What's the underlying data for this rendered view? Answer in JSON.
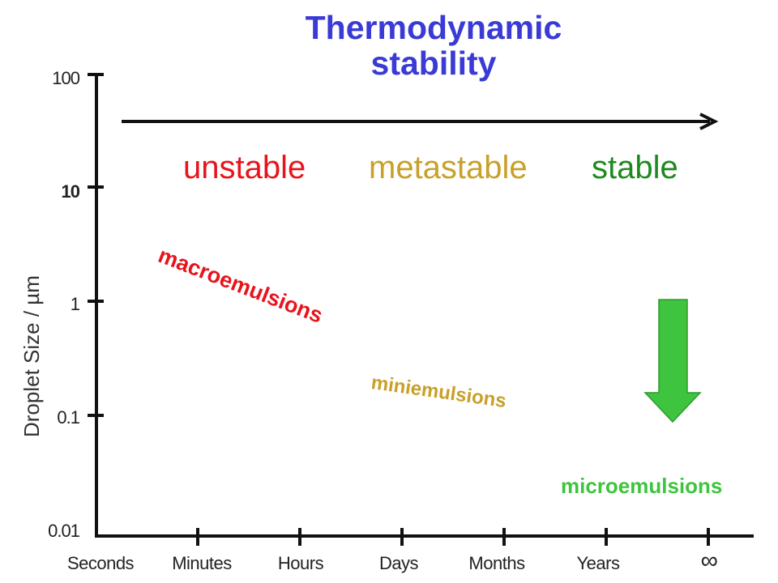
{
  "title": {
    "line1": "Thermodynamic",
    "line2": "stability"
  },
  "stability": {
    "unstable": "unstable",
    "metastable": "metastable",
    "stable": "stable"
  },
  "emulsions": {
    "macro": "macroemulsions",
    "mini": "miniemulsions",
    "micro": "microemulsions"
  },
  "y_axis": {
    "label": "Droplet Size / µm",
    "ticks": [
      "100",
      "10",
      "1",
      "0.1",
      "0.01"
    ]
  },
  "x_axis": {
    "ticks": [
      "Seconds",
      "Minutes",
      "Hours",
      "Days",
      "Months",
      "Years",
      "∞"
    ]
  },
  "colors": {
    "title": "#3a3ad6",
    "unstable": "#e8141c",
    "metastable": "#c8a02a",
    "stable": "#1e8a1e",
    "micro": "#3ec43e",
    "arrow": "#3ec43e"
  }
}
